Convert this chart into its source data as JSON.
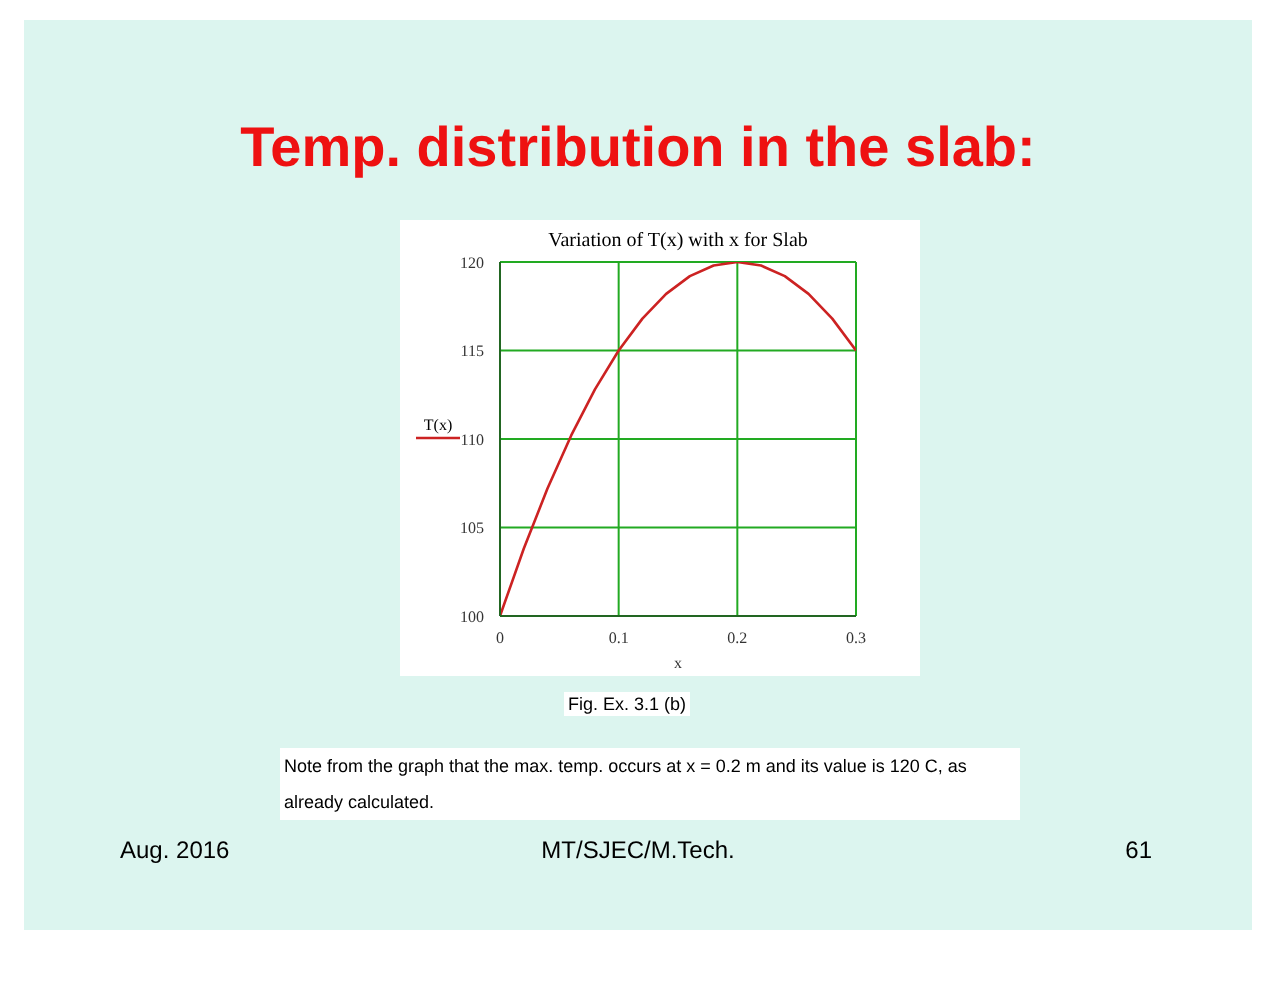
{
  "chart_data": {
    "type": "line",
    "title": "Temp. distribution in the slab:",
    "subtitle": "Variation of T(x) with x for Slab",
    "xlabel": "x",
    "x": [
      0,
      0.02,
      0.04,
      0.06,
      0.08,
      0.1,
      0.12,
      0.14,
      0.16,
      0.18,
      0.2,
      0.22,
      0.24,
      0.26,
      0.28,
      0.3
    ],
    "series": [
      {
        "name": "T(x)",
        "color": "#cc2222",
        "values": [
          100,
          103.8,
          107.2,
          110.2,
          112.8,
          115,
          116.8,
          118.2,
          119.2,
          119.8,
          120,
          119.8,
          119.2,
          118.2,
          116.8,
          115
        ]
      }
    ],
    "xlim": [
      0,
      0.3
    ],
    "xticks": [
      0,
      0.1,
      0.2,
      0.3
    ],
    "ylim": [
      100,
      120
    ],
    "yticks": [
      100,
      105,
      110,
      115,
      120
    ],
    "grid": true,
    "legend": "left",
    "marker": "none",
    "line_style": "solid",
    "annotations": [
      "Fig. Ex. 3.1 (b)",
      "Note from the graph that the max. temp. occurs at x = 0.2 m and its value is 120 C, as already calculated.",
      "Aug. 2016",
      "MT/SJEC/M.Tech.",
      "61"
    ]
  }
}
